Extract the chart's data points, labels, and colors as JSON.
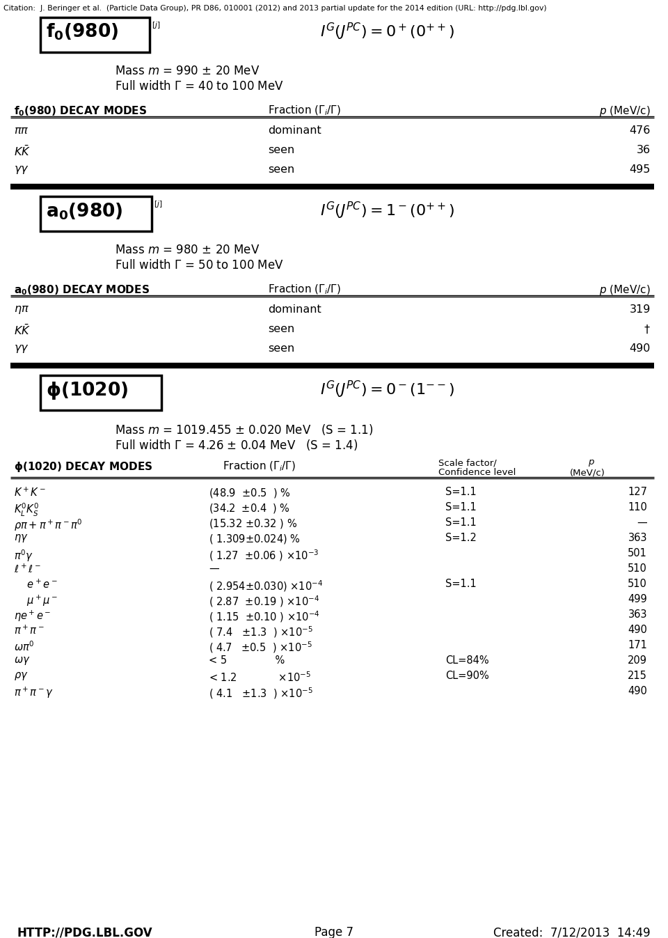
{
  "citation": "Citation:  J. Beringer et al.  (Particle Data Group), PR D86, 010001 (2012) and 2013 partial update for the 2014 edition (URL: http://pdg.lbl.gov)",
  "bg_color": "#ffffff",
  "text_color": "#000000",
  "footer_left": "HTTP://PDG.LBL.GOV",
  "footer_center": "Page 7",
  "footer_right": "Created:  7/12/2013  14:49",
  "p1_box_label": "$\\mathbf{f_0(980)}$",
  "p1_superscript": "$^{[j]}$",
  "p1_quantum": "$I^G(J^{PC}) = 0^+(0^{++})$",
  "p1_mass": "Mass $m$ = 990 $\\pm$ 20 MeV",
  "p1_width": "Full width $\\Gamma$ = 40 to 100 MeV",
  "p1_th_left": "f_0(980) DECAY MODES",
  "p1_th_mid": "Fraction $(\\Gamma_i/\\Gamma)$",
  "p1_th_right": "$p$ (MeV/c)",
  "p1_rows": [
    [
      "$\\pi\\pi$",
      "dominant",
      "",
      "476"
    ],
    [
      "$K\\bar{K}$",
      "seen",
      "",
      "36"
    ],
    [
      "$\\gamma\\gamma$",
      "seen",
      "",
      "495"
    ]
  ],
  "p2_box_label": "$\\mathbf{a_0(980)}$",
  "p2_superscript": "$^{[j]}$",
  "p2_quantum": "$I^G(J^{PC}) = 1^-(0^{++})$",
  "p2_mass": "Mass $m$ = 980 $\\pm$ 20 MeV",
  "p2_width": "Full width $\\Gamma$ = 50 to 100 MeV",
  "p2_th_left": "a_0(980) DECAY MODES",
  "p2_th_mid": "Fraction $(\\Gamma_i/\\Gamma)$",
  "p2_th_right": "$p$ (MeV/c)",
  "p2_rows": [
    [
      "$\\eta\\pi$",
      "dominant",
      "",
      "319"
    ],
    [
      "$K\\bar{K}$",
      "seen",
      "",
      "$\\dagger$"
    ],
    [
      "$\\gamma\\gamma$",
      "seen",
      "",
      "490"
    ]
  ],
  "p3_box_label": "$\\mathbf{\\phi(1020)}$",
  "p3_quantum": "$I^G(J^{PC}) = 0^-(1^{--})$",
  "p3_mass": "Mass $m$ = 1019.455 $\\pm$ 0.020 MeV   (S = 1.1)",
  "p3_width": "Full width $\\Gamma$ = 4.26 $\\pm$ 0.04 MeV   (S = 1.4)",
  "p3_th_left": "\\phi(1020) DECAY MODES",
  "p3_th_mid": "Fraction $(\\Gamma_i/\\Gamma)$",
  "p3_th_scale1": "Scale factor/",
  "p3_th_scale2": "Confidence level",
  "p3_th_right1": "$p$",
  "p3_th_right2": "(MeV/c)",
  "p3_rows": [
    [
      "$K^+K^-$",
      "(48.9  $\\pm$0.5  ) %",
      "S=1.1",
      "127"
    ],
    [
      "$K^0_L K^0_S$",
      "(34.2  $\\pm$0.4  ) %",
      "S=1.1",
      "110"
    ],
    [
      "$\\rho\\pi +  \\pi^+\\pi^-\\pi^0$",
      "(15.32 $\\pm$0.32 ) %",
      "S=1.1",
      "—"
    ],
    [
      "$\\eta\\gamma$",
      "( 1.309$\\pm$0.024) %",
      "S=1.2",
      "363"
    ],
    [
      "$\\pi^0\\gamma$",
      "( 1.27  $\\pm$0.06 ) $\\times10^{-3}$",
      "",
      "501"
    ],
    [
      "$\\ell^+\\ell^-$",
      "—",
      "",
      "510"
    ],
    [
      "    $e^+e^-$",
      "( 2.954$\\pm$0.030) $\\times10^{-4}$",
      "S=1.1",
      "510"
    ],
    [
      "    $\\mu^+\\mu^-$",
      "( 2.87  $\\pm$0.19 ) $\\times10^{-4}$",
      "",
      "499"
    ],
    [
      "$\\eta e^+e^-$",
      "( 1.15  $\\pm$0.10 ) $\\times10^{-4}$",
      "",
      "363"
    ],
    [
      "$\\pi^+\\pi^-$",
      "( 7.4   $\\pm$1.3  ) $\\times10^{-5}$",
      "",
      "490"
    ],
    [
      "$\\omega\\pi^0$",
      "( 4.7   $\\pm$0.5  ) $\\times10^{-5}$",
      "",
      "171"
    ],
    [
      "$\\omega\\gamma$",
      "< 5               %",
      "CL=84%",
      "209"
    ],
    [
      "$\\rho\\gamma$",
      "< 1.2             $\\times10^{-5}$",
      "CL=90%",
      "215"
    ],
    [
      "$\\pi^+\\pi^-\\gamma$",
      "( 4.1   $\\pm$1.3  ) $\\times10^{-5}$",
      "",
      "490"
    ]
  ]
}
